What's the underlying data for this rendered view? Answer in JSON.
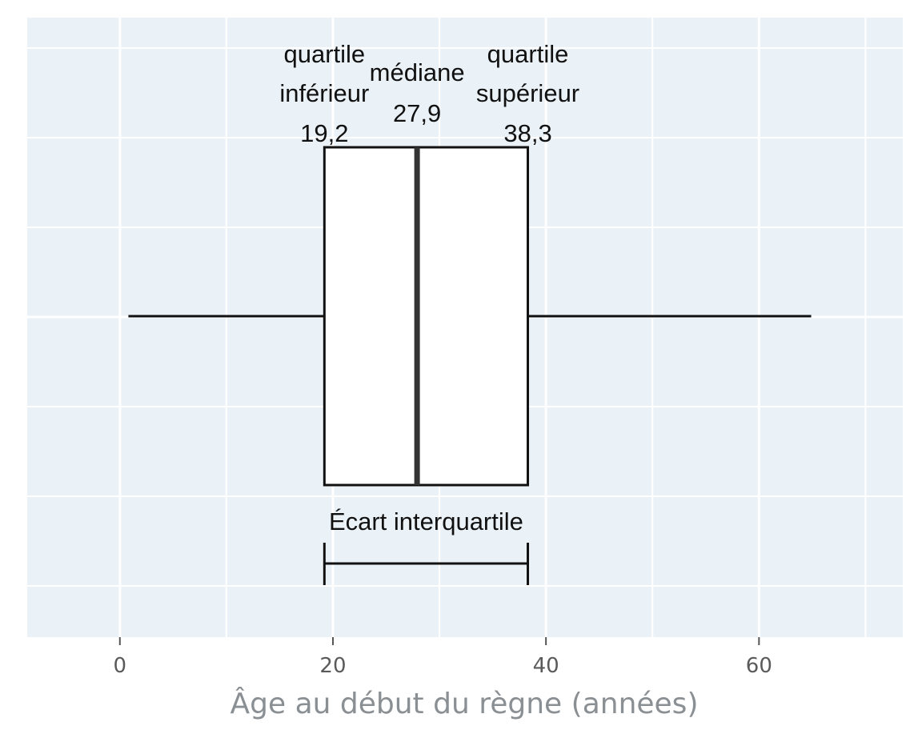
{
  "chart_data": {
    "type": "boxplot",
    "xlabel": "Âge au début du règne (années)",
    "ylabel": "",
    "xlim": [
      -8.7,
      73.5
    ],
    "ticks": [
      0,
      20,
      40,
      60
    ],
    "tick_labels": [
      "0",
      "20",
      "40",
      "60"
    ],
    "grid": true,
    "colors": {
      "panel": "#ebf2f7",
      "grid": "#ffffff",
      "box_fill": "#ffffff",
      "stroke": "#111111",
      "median": "#333333"
    },
    "box": {
      "whisker_low": 0.8,
      "q1": 19.2,
      "median": 27.9,
      "q3": 38.3,
      "whisker_high": 64.9
    },
    "annotations": {
      "q1": {
        "lines": [
          "quartile",
          "inférieur"
        ],
        "value": "19,2"
      },
      "median": {
        "lines": [
          "médiane"
        ],
        "value": "27,9"
      },
      "q3": {
        "lines": [
          "quartile",
          "supérieur"
        ],
        "value": "38,3"
      },
      "iqr_label": "Écart interquartile"
    }
  }
}
